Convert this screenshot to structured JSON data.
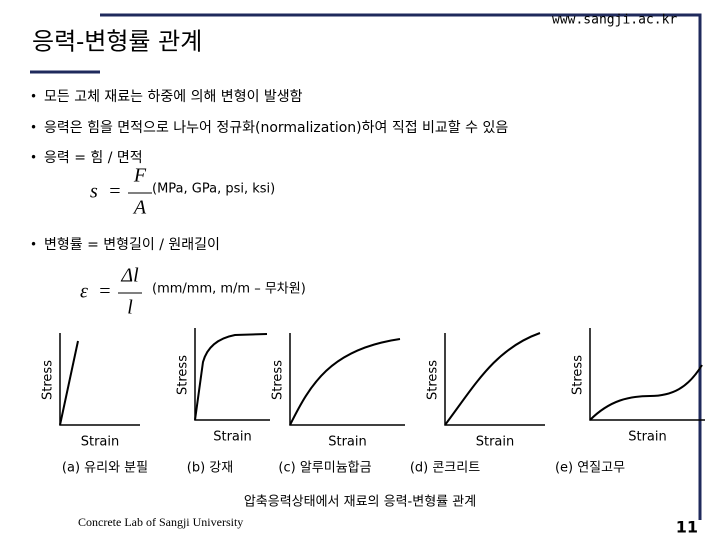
{
  "header": {
    "title": "응력-변형률 관계",
    "url": "www.sangji.ac.kr"
  },
  "bullets": [
    "모든 고체 재료는 하중에 의해 변형이 발생함",
    "응력은 힘을 면적으로 나누어 정규화(normalization)하여 직접 비교할 수 있음",
    "응력 = 힘 / 면적",
    "변형률 = 변형길이 / 원래길이"
  ],
  "bullet_mark": "•",
  "formulas": [
    {
      "lhs": "s",
      "equals": "=",
      "numerator": "F",
      "denominator": "A",
      "units": "(MPa, GPa, psi, ksi)"
    },
    {
      "lhs": "ε",
      "equals": "=",
      "numerator": "Δl",
      "denominator": "l",
      "units": "(mm/mm, m/m – 무차원)"
    }
  ],
  "panels": [
    {
      "y_label": "Stress",
      "x_label": "Strain",
      "label": "(a) 유리와 분필"
    },
    {
      "y_label": "Stress",
      "x_label": "Strain",
      "label": "(b) 강재"
    },
    {
      "y_label": "Stress",
      "x_label": "Strain",
      "label": "(c) 알루미늄합금"
    },
    {
      "y_label": "Stress",
      "x_label": "Strain",
      "label": "(d) 콘크리트"
    },
    {
      "y_label": "Stress",
      "x_label": "Strain",
      "label": "(e) 연질고무"
    }
  ],
  "caption": "압축응력상태에서 재료의 응력-변형률 관계",
  "footer": {
    "lab": "Concrete Lab of Sangji University",
    "page": "11"
  }
}
